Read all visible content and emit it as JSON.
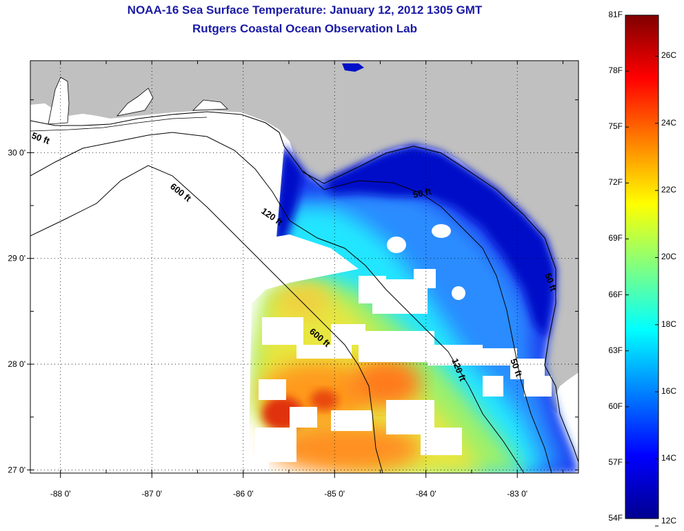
{
  "title": "NOAA-16 Sea Surface Temperature:  January 12, 2012 1305 GMT",
  "subtitle": "Rutgers Coastal Ocean Observation Lab",
  "map": {
    "lon_range": [
      -88.33,
      -82.33
    ],
    "lat_range": [
      26.97,
      30.87
    ],
    "lon_ticks": [
      {
        "value": -88,
        "label": "-88 0'"
      },
      {
        "value": -87,
        "label": "-87 0'"
      },
      {
        "value": -86,
        "label": "-86 0'"
      },
      {
        "value": -85,
        "label": "-85 0'"
      },
      {
        "value": -84,
        "label": "-84 0'"
      },
      {
        "value": -83,
        "label": "-83 0'"
      }
    ],
    "lat_ticks": [
      {
        "value": 30,
        "label": "30 0'"
      },
      {
        "value": 29,
        "label": "29 0'"
      },
      {
        "value": 28,
        "label": "28 0'"
      },
      {
        "value": 27,
        "label": "27 0'"
      }
    ],
    "grid": true,
    "land_color": "#c0c0c0",
    "contour_labels": [
      "50 ft",
      "600 ft",
      "120 ft",
      "50 ft",
      "50 ft",
      "600 ft",
      "120 ft",
      "50 ft"
    ]
  },
  "colorbar": {
    "colors": [
      "#00008f",
      "#0000ff",
      "#0080ff",
      "#00ffff",
      "#80ff80",
      "#ffff00",
      "#ff8000",
      "#ff0000",
      "#800000"
    ],
    "fahrenheit_labels": [
      "81F",
      "78F",
      "75F",
      "72F",
      "69F",
      "66F",
      "63F",
      "60F",
      "57F",
      "54F"
    ],
    "celsius_labels": [
      "26C",
      "24C",
      "22C",
      "20C",
      "18C",
      "16C",
      "14C",
      "12C"
    ]
  }
}
